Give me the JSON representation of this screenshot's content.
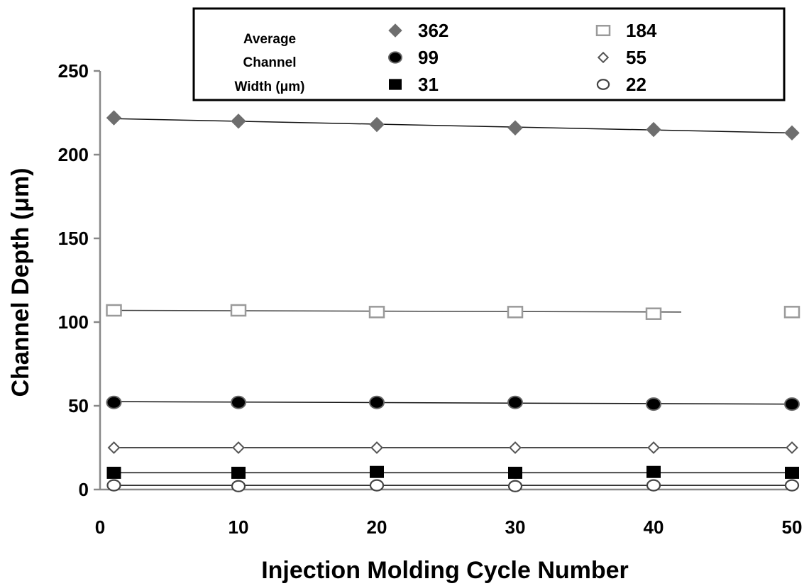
{
  "chart_data": {
    "type": "scatter",
    "xlabel": "Injection Molding Cycle Number",
    "ylabel": "Channel Depth (μm)",
    "x": [
      1,
      10,
      20,
      30,
      40,
      50
    ],
    "xlim": [
      0,
      50
    ],
    "ylim": [
      0,
      250
    ],
    "xticks": [
      0,
      10,
      20,
      30,
      40,
      50
    ],
    "yticks": [
      0,
      50,
      100,
      150,
      200,
      250
    ],
    "grid": false,
    "legend": {
      "title_lines": [
        "Average",
        "Channel",
        "Width (μm)"
      ],
      "position": "top"
    },
    "series": [
      {
        "name": "362",
        "marker": "diamond-filled",
        "color": "#6e6e6e",
        "values": [
          222,
          220,
          218,
          216,
          215,
          213
        ],
        "trendline": [
          221.5,
          213
        ],
        "trend_x": [
          1,
          50
        ]
      },
      {
        "name": "184",
        "marker": "square-open",
        "color": "#9a9a9a",
        "values": [
          107,
          107,
          106,
          106,
          105,
          106
        ],
        "trendline": [
          107,
          106
        ],
        "trend_x": [
          1,
          42
        ]
      },
      {
        "name": "99",
        "marker": "circle-filled",
        "color": "#000000",
        "values": [
          52,
          52,
          52,
          52,
          51,
          51
        ],
        "trendline": [
          52.5,
          51
        ],
        "trend_x": [
          1,
          50
        ]
      },
      {
        "name": "55",
        "marker": "diamond-open",
        "color": "#555555",
        "values": [
          25,
          25,
          25,
          25,
          25,
          25
        ],
        "trendline": [
          25,
          25
        ],
        "trend_x": [
          1,
          50
        ]
      },
      {
        "name": "31",
        "marker": "square-filled",
        "color": "#000000",
        "values": [
          10,
          10,
          10.5,
          10,
          10.5,
          10
        ],
        "trendline": [
          10,
          10
        ],
        "trend_x": [
          1,
          50
        ]
      },
      {
        "name": "22",
        "marker": "circle-open",
        "color": "#444444",
        "values": [
          2.5,
          2,
          2.5,
          2,
          2.5,
          2.5
        ],
        "trendline": [
          2.5,
          2.5
        ],
        "trend_x": [
          1,
          50
        ]
      }
    ]
  }
}
